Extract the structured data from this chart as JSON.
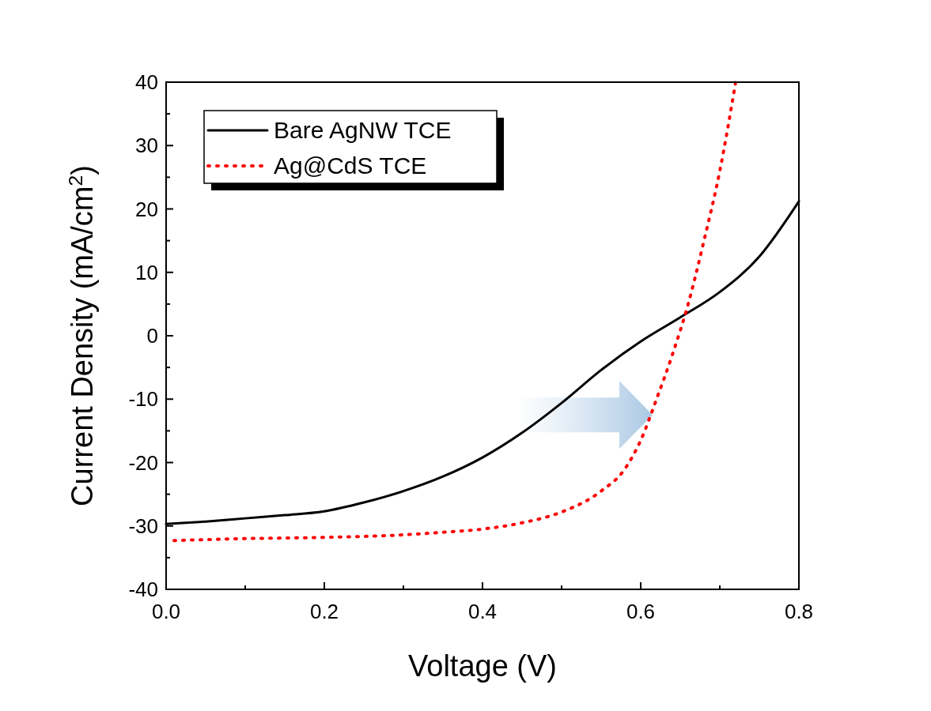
{
  "chart_data": {
    "type": "line",
    "xlabel": "Voltage (V)",
    "ylabel": "Current Density (mA/cm$^{2}$)",
    "xlim": [
      0,
      0.8
    ],
    "ylim": [
      -40,
      40
    ],
    "xticks": [
      {
        "value": 0,
        "label": "0.0"
      },
      {
        "value": 0.1,
        "label": null
      },
      {
        "value": 0.2,
        "label": "0.2"
      },
      {
        "value": 0.3,
        "label": null
      },
      {
        "value": 0.4,
        "label": "0.4"
      },
      {
        "value": 0.5,
        "label": null
      },
      {
        "value": 0.6,
        "label": "0.6"
      },
      {
        "value": 0.7,
        "label": null
      },
      {
        "value": 0.8,
        "label": "0.8"
      }
    ],
    "yticks": [
      -40,
      {
        "value": -35,
        "label": null
      },
      -30,
      {
        "value": -25,
        "label": null
      },
      -20,
      {
        "value": -15,
        "label": null
      },
      -10,
      {
        "value": -5,
        "label": null
      },
      0,
      {
        "value": 5,
        "label": null
      },
      10,
      {
        "value": 15,
        "label": null
      },
      20,
      {
        "value": 25,
        "label": null
      },
      30,
      {
        "value": 35,
        "label": null
      },
      40
    ],
    "legend": "top left",
    "grid": false,
    "series": [
      {
        "name": "Bare AgNW TCE",
        "color": "#000000",
        "line_style": "solid",
        "x": [
          0,
          0.05,
          0.1,
          0.15,
          0.2,
          0.25,
          0.3,
          0.35,
          0.4,
          0.45,
          0.5,
          0.55,
          0.6,
          0.65,
          0.7,
          0.75,
          0.8
        ],
        "values": [
          -29.7,
          -29.3,
          -28.8,
          -28.3,
          -27.7,
          -26.3,
          -24.5,
          -22.2,
          -19.2,
          -15.3,
          -10.6,
          -5.4,
          -0.9,
          2.9,
          6.9,
          12.5,
          21.2
        ]
      },
      {
        "name": "Ag@CdS TCE",
        "color": "#ff0000",
        "line_style": "dotted",
        "x": [
          0.01,
          0.1,
          0.2,
          0.3,
          0.35,
          0.4,
          0.45,
          0.5,
          0.55,
          0.58,
          0.6,
          0.62,
          0.64,
          0.66,
          0.68,
          0.7,
          0.72
        ],
        "values": [
          -32.3,
          -32.0,
          -31.8,
          -31.4,
          -31.0,
          -30.5,
          -29.5,
          -27.8,
          -24.5,
          -21,
          -16.5,
          -10,
          -3,
          5,
          15,
          26,
          40
        ]
      }
    ]
  }
}
